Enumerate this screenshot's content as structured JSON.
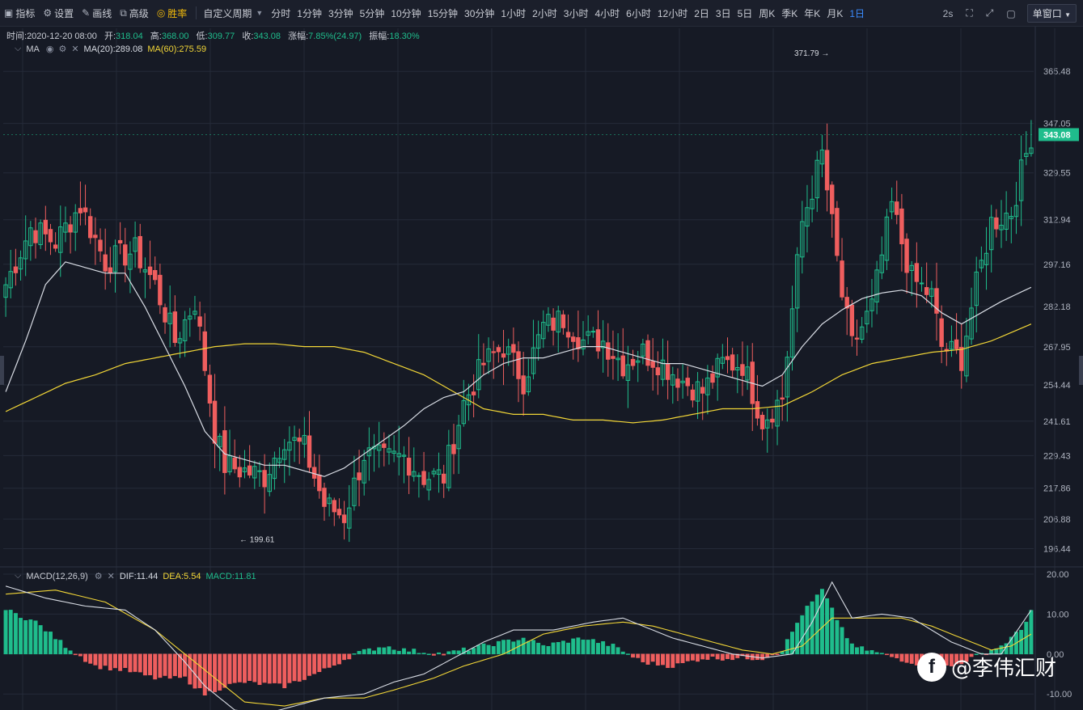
{
  "toolbar": {
    "tools": [
      {
        "icon": "chart-icon",
        "glyph": "▣",
        "label": "指标"
      },
      {
        "icon": "gear-icon",
        "glyph": "⚙",
        "label": "设置"
      },
      {
        "icon": "pen-icon",
        "glyph": "✎",
        "label": "画线"
      },
      {
        "icon": "box-icon",
        "glyph": "⧉",
        "label": "高级"
      },
      {
        "icon": "coin-icon",
        "glyph": "◎",
        "label": "胜率"
      }
    ],
    "custom_period": "自定义周期",
    "periods": [
      "分时",
      "1分钟",
      "3分钟",
      "5分钟",
      "10分钟",
      "15分钟",
      "30分钟",
      "1小时",
      "2小时",
      "3小时",
      "4小时",
      "6小时",
      "12小时",
      "2日",
      "3日",
      "5日",
      "周K",
      "季K",
      "年K",
      "月K",
      "1日"
    ],
    "active_period": "1日",
    "refresh": "2s",
    "window_mode": "单窗口"
  },
  "info": {
    "time_label": "时间:",
    "time": "2020-12-20 08:00",
    "open_label": "开:",
    "open": "318.04",
    "high_label": "高:",
    "high": "368.00",
    "low_label": "低:",
    "low": "309.77",
    "close_label": "收:",
    "close": "343.08",
    "change_label": "涨幅:",
    "change": "7.85%(24.97)",
    "amplitude_label": "振幅:",
    "amplitude": "18.30%"
  },
  "ma_legend": {
    "name": "MA",
    "ma20": "MA(20):289.08",
    "ma60": "MA(60):275.59"
  },
  "macd_legend": {
    "name": "MACD(12,26,9)",
    "dif": "DIF:11.44",
    "dea": "DEA:5.54",
    "macd": "MACD:11.81"
  },
  "colors": {
    "up": "#1fbd8c",
    "down": "#ef5e5e",
    "ma20": "#d8dce4",
    "ma60": "#f2d637",
    "grid": "#242a38",
    "bg": "#161a25",
    "active": "#3b8cff"
  },
  "chart_data": {
    "type": "candlestick",
    "price_axis": {
      "min": 190,
      "max": 375,
      "ticks": [
        "365.48",
        "347.05",
        "329.55",
        "312.94",
        "297.16",
        "282.18",
        "267.95",
        "254.44",
        "241.61",
        "229.43",
        "217.86",
        "206.88",
        "196.44"
      ]
    },
    "current_price": "343.08",
    "high_marker": {
      "value": 371.79,
      "label": "371.79 →"
    },
    "low_marker": {
      "value": 199.61,
      "label": "← 199.61"
    },
    "macd_axis": {
      "min": -14,
      "max": 21,
      "ticks": [
        "20.00",
        "10.00",
        "0.00",
        "-10.00"
      ]
    },
    "close_path": [
      [
        0,
        290
      ],
      [
        5,
        310
      ],
      [
        10,
        305
      ],
      [
        15,
        318
      ],
      [
        20,
        298
      ],
      [
        26,
        302
      ],
      [
        30,
        290
      ],
      [
        34,
        270
      ],
      [
        38,
        284
      ],
      [
        42,
        238
      ],
      [
        44,
        226
      ],
      [
        48,
        224
      ],
      [
        52,
        222
      ],
      [
        56,
        236
      ],
      [
        60,
        232
      ],
      [
        64,
        212
      ],
      [
        68,
        208
      ],
      [
        72,
        230
      ],
      [
        76,
        228
      ],
      [
        80,
        229
      ],
      [
        84,
        222
      ],
      [
        88,
        222
      ],
      [
        92,
        248
      ],
      [
        96,
        262
      ],
      [
        100,
        268
      ],
      [
        104,
        256
      ],
      [
        108,
        275
      ],
      [
        112,
        278
      ],
      [
        116,
        270
      ],
      [
        120,
        270
      ],
      [
        124,
        262
      ],
      [
        128,
        266
      ],
      [
        132,
        262
      ],
      [
        136,
        256
      ],
      [
        140,
        252
      ],
      [
        144,
        262
      ],
      [
        148,
        262
      ],
      [
        152,
        242
      ],
      [
        156,
        250
      ],
      [
        160,
        312
      ],
      [
        164,
        336
      ],
      [
        168,
        286
      ],
      [
        170,
        268
      ],
      [
        174,
        282
      ],
      [
        178,
        318
      ],
      [
        182,
        292
      ],
      [
        186,
        286
      ],
      [
        188,
        268
      ],
      [
        192,
        264
      ],
      [
        194,
        282
      ],
      [
        198,
        312
      ],
      [
        202,
        316
      ],
      [
        206,
        343
      ]
    ],
    "ma20_path": [
      [
        0,
        252
      ],
      [
        4,
        270
      ],
      [
        8,
        290
      ],
      [
        12,
        298
      ],
      [
        16,
        296
      ],
      [
        20,
        294
      ],
      [
        24,
        294
      ],
      [
        28,
        282
      ],
      [
        32,
        268
      ],
      [
        36,
        254
      ],
      [
        40,
        238
      ],
      [
        44,
        230
      ],
      [
        48,
        228
      ],
      [
        52,
        226
      ],
      [
        56,
        226
      ],
      [
        60,
        224
      ],
      [
        64,
        222
      ],
      [
        68,
        225
      ],
      [
        72,
        230
      ],
      [
        76,
        235
      ],
      [
        80,
        240
      ],
      [
        84,
        246
      ],
      [
        88,
        250
      ],
      [
        92,
        252
      ],
      [
        96,
        258
      ],
      [
        100,
        262
      ],
      [
        104,
        264
      ],
      [
        108,
        264
      ],
      [
        112,
        266
      ],
      [
        116,
        268
      ],
      [
        120,
        268
      ],
      [
        124,
        266
      ],
      [
        128,
        264
      ],
      [
        132,
        262
      ],
      [
        136,
        262
      ],
      [
        140,
        260
      ],
      [
        144,
        258
      ],
      [
        148,
        256
      ],
      [
        152,
        254
      ],
      [
        156,
        258
      ],
      [
        160,
        268
      ],
      [
        164,
        276
      ],
      [
        168,
        281
      ],
      [
        172,
        285
      ],
      [
        176,
        287
      ],
      [
        180,
        288
      ],
      [
        184,
        286
      ],
      [
        188,
        280
      ],
      [
        192,
        276
      ],
      [
        196,
        280
      ],
      [
        200,
        284
      ],
      [
        206,
        289
      ]
    ],
    "ma60_path": [
      [
        0,
        245
      ],
      [
        6,
        250
      ],
      [
        12,
        255
      ],
      [
        18,
        258
      ],
      [
        24,
        262
      ],
      [
        30,
        264
      ],
      [
        36,
        266
      ],
      [
        42,
        268
      ],
      [
        48,
        269
      ],
      [
        54,
        269
      ],
      [
        60,
        268
      ],
      [
        66,
        268
      ],
      [
        72,
        266
      ],
      [
        78,
        262
      ],
      [
        84,
        258
      ],
      [
        90,
        252
      ],
      [
        96,
        246
      ],
      [
        102,
        244
      ],
      [
        108,
        244
      ],
      [
        114,
        242
      ],
      [
        120,
        242
      ],
      [
        126,
        241
      ],
      [
        132,
        242
      ],
      [
        138,
        244
      ],
      [
        144,
        246
      ],
      [
        150,
        246
      ],
      [
        156,
        247
      ],
      [
        162,
        252
      ],
      [
        168,
        258
      ],
      [
        174,
        262
      ],
      [
        180,
        264
      ],
      [
        186,
        266
      ],
      [
        192,
        267
      ],
      [
        198,
        270
      ],
      [
        206,
        276
      ]
    ],
    "macd_path": [
      [
        0,
        11
      ],
      [
        6,
        8
      ],
      [
        12,
        2
      ],
      [
        18,
        -3
      ],
      [
        24,
        -4
      ],
      [
        30,
        -6
      ],
      [
        36,
        -6
      ],
      [
        40,
        -10
      ],
      [
        44,
        -8
      ],
      [
        48,
        -7
      ],
      [
        56,
        -8
      ],
      [
        64,
        -4
      ],
      [
        70,
        0
      ],
      [
        76,
        2
      ],
      [
        80,
        1
      ],
      [
        88,
        0
      ],
      [
        96,
        2
      ],
      [
        104,
        4
      ],
      [
        108,
        2
      ],
      [
        116,
        4
      ],
      [
        122,
        2
      ],
      [
        128,
        -2
      ],
      [
        134,
        -3
      ],
      [
        140,
        -1
      ],
      [
        146,
        -1
      ],
      [
        152,
        -1
      ],
      [
        156,
        1
      ],
      [
        160,
        10
      ],
      [
        164,
        16
      ],
      [
        166,
        11
      ],
      [
        170,
        2
      ],
      [
        176,
        0
      ],
      [
        182,
        -2
      ],
      [
        186,
        -3
      ],
      [
        190,
        -3
      ],
      [
        196,
        0
      ],
      [
        200,
        2
      ],
      [
        204,
        6
      ],
      [
        206,
        11
      ]
    ],
    "dif_path": [
      [
        0,
        17
      ],
      [
        8,
        14
      ],
      [
        16,
        12
      ],
      [
        24,
        11
      ],
      [
        30,
        6
      ],
      [
        36,
        -2
      ],
      [
        40,
        -8
      ],
      [
        46,
        -14
      ],
      [
        52,
        -15
      ],
      [
        58,
        -13
      ],
      [
        64,
        -11
      ],
      [
        72,
        -10
      ],
      [
        78,
        -7
      ],
      [
        84,
        -5
      ],
      [
        90,
        -1
      ],
      [
        96,
        3
      ],
      [
        102,
        6
      ],
      [
        110,
        6
      ],
      [
        118,
        8
      ],
      [
        124,
        9
      ],
      [
        128,
        7
      ],
      [
        134,
        4
      ],
      [
        140,
        2
      ],
      [
        146,
        0
      ],
      [
        152,
        -1
      ],
      [
        158,
        0
      ],
      [
        162,
        8
      ],
      [
        166,
        18
      ],
      [
        170,
        9
      ],
      [
        176,
        10
      ],
      [
        182,
        9
      ],
      [
        186,
        6
      ],
      [
        190,
        3
      ],
      [
        196,
        0
      ],
      [
        200,
        0
      ],
      [
        206,
        11
      ]
    ],
    "dea_path": [
      [
        0,
        15
      ],
      [
        10,
        16
      ],
      [
        20,
        13
      ],
      [
        30,
        6
      ],
      [
        36,
        0
      ],
      [
        42,
        -6
      ],
      [
        48,
        -12
      ],
      [
        56,
        -13
      ],
      [
        64,
        -11
      ],
      [
        72,
        -11
      ],
      [
        78,
        -9
      ],
      [
        86,
        -6
      ],
      [
        92,
        -3
      ],
      [
        100,
        0
      ],
      [
        108,
        5
      ],
      [
        116,
        7
      ],
      [
        124,
        8
      ],
      [
        130,
        7
      ],
      [
        136,
        5
      ],
      [
        142,
        3
      ],
      [
        148,
        1
      ],
      [
        154,
        0
      ],
      [
        160,
        2
      ],
      [
        166,
        9
      ],
      [
        172,
        9
      ],
      [
        180,
        9
      ],
      [
        186,
        7
      ],
      [
        192,
        4
      ],
      [
        198,
        1
      ],
      [
        202,
        2
      ],
      [
        206,
        5
      ]
    ]
  }
}
